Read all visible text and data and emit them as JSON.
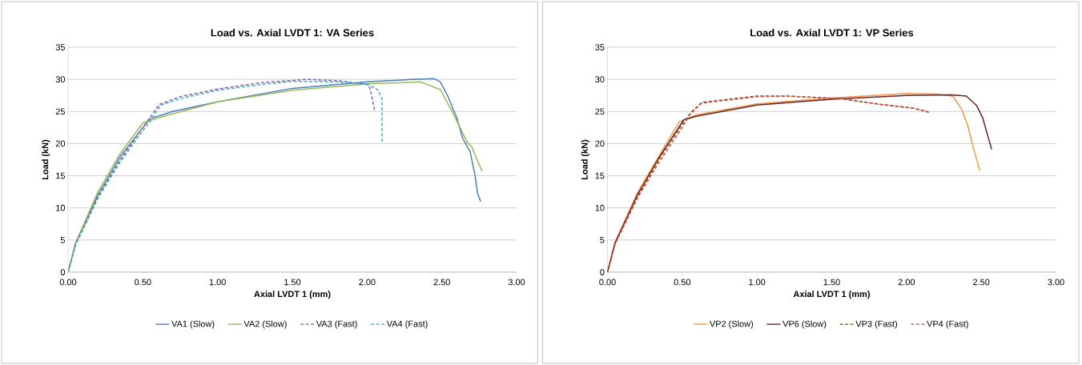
{
  "chart_data": [
    {
      "type": "line",
      "title": "Load vs. Axial LVDT 1: VA Series",
      "xlabel": "Axial LVDT 1 (mm)",
      "ylabel": "Load (kN)",
      "xlim": [
        0,
        3
      ],
      "xticks": [
        {
          "value": 0,
          "label": "0.00"
        },
        {
          "value": 0.5,
          "label": "0.50"
        },
        {
          "value": 1,
          "label": "1.00"
        },
        {
          "value": 1.5,
          "label": "1.50"
        },
        {
          "value": 2,
          "label": "2.00"
        },
        {
          "value": 2.5,
          "label": "2.50"
        },
        {
          "value": 3,
          "label": "3.00"
        }
      ],
      "ylim": [
        0,
        35
      ],
      "yticks": [
        0,
        5,
        10,
        15,
        20,
        25,
        30,
        35
      ],
      "grid": "y",
      "legend": "bottom",
      "series": [
        {
          "name": "VA1 (Slow)",
          "color": "#4a7ebb",
          "line_style": "solid",
          "x": [
            0,
            0.05,
            0.2,
            0.35,
            0.5,
            0.55,
            0.7,
            1.0,
            1.5,
            2.0,
            2.3,
            2.45,
            2.49,
            2.54,
            2.6,
            2.64,
            2.69,
            2.72,
            2.74,
            2.76
          ],
          "values": [
            0,
            4.5,
            12,
            18,
            22.5,
            23.9,
            25,
            26.5,
            28.6,
            29.6,
            30,
            30.1,
            29.6,
            27.4,
            24,
            20.8,
            18.7,
            15.3,
            12.2,
            11
          ]
        },
        {
          "name": "VA2 (Slow)",
          "color": "#98b954",
          "line_style": "solid",
          "x": [
            0,
            0.05,
            0.2,
            0.35,
            0.5,
            0.6,
            1.0,
            1.5,
            2.0,
            2.36,
            2.49,
            2.58,
            2.67,
            2.7,
            2.73,
            2.77
          ],
          "values": [
            0,
            4.5,
            12.5,
            18.5,
            23.2,
            24,
            26.5,
            28.3,
            29.3,
            29.6,
            28.4,
            24.5,
            20.2,
            19.5,
            17.8,
            15.7
          ]
        },
        {
          "name": "VA3 (Fast)",
          "color": "#7d60a0",
          "line_style": "dashed",
          "x": [
            0,
            0.05,
            0.2,
            0.35,
            0.5,
            0.61,
            0.75,
            1.0,
            1.3,
            1.6,
            1.8,
            2.0,
            2.02,
            2.05
          ],
          "values": [
            0,
            4.3,
            11.8,
            17.5,
            22.5,
            26.1,
            27.3,
            28.5,
            29.5,
            30,
            29.8,
            29.2,
            28.6,
            25.2
          ]
        },
        {
          "name": "VA4 (Fast)",
          "color": "#46aac5",
          "line_style": "dashed",
          "x": [
            0,
            0.05,
            0.2,
            0.35,
            0.5,
            0.55,
            0.62,
            0.75,
            1.0,
            1.3,
            1.5,
            1.8,
            2.0,
            2.07,
            2.1,
            2.1
          ],
          "values": [
            0,
            4.2,
            11.5,
            17.2,
            22,
            23.5,
            26,
            27,
            28.3,
            29.2,
            29.7,
            29.6,
            29.3,
            28.4,
            27,
            20
          ]
        }
      ]
    },
    {
      "type": "line",
      "title": "Load vs. Axial LVDT 1: VP Series",
      "xlabel": "Axial LVDT 1 (mm)",
      "ylabel": "Load (kN)",
      "xlim": [
        0,
        3
      ],
      "xticks": [
        {
          "value": 0,
          "label": "0.00"
        },
        {
          "value": 0.5,
          "label": "0.50"
        },
        {
          "value": 1,
          "label": "1.00"
        },
        {
          "value": 1.5,
          "label": "1.50"
        },
        {
          "value": 2,
          "label": "2.00"
        },
        {
          "value": 2.5,
          "label": "2.50"
        },
        {
          "value": 3,
          "label": "3.00"
        }
      ],
      "ylim": [
        0,
        35
      ],
      "yticks": [
        0,
        5,
        10,
        15,
        20,
        25,
        30,
        35
      ],
      "grid": "y",
      "legend": "bottom",
      "series": [
        {
          "name": "VP2 (Slow)",
          "color": "#f79646",
          "line_style": "solid",
          "x": [
            0,
            0.05,
            0.2,
            0.35,
            0.48,
            0.6,
            1.0,
            1.5,
            2.0,
            2.2,
            2.31,
            2.37,
            2.41,
            2.45,
            2.49
          ],
          "values": [
            0,
            4.6,
            12.3,
            18.3,
            23.4,
            24.5,
            26.2,
            27.1,
            27.8,
            27.7,
            27.4,
            25.3,
            22.8,
            19.1,
            15.8
          ]
        },
        {
          "name": "VP6 (Slow)",
          "color": "#632523",
          "line_style": "solid",
          "x": [
            0,
            0.05,
            0.2,
            0.35,
            0.51,
            0.6,
            1.0,
            1.5,
            2.0,
            2.3,
            2.4,
            2.47,
            2.51,
            2.54,
            2.57
          ],
          "values": [
            0,
            4.5,
            12,
            18,
            23.7,
            24.3,
            26,
            26.9,
            27.5,
            27.6,
            27.4,
            25.9,
            24,
            21.5,
            19.1
          ]
        },
        {
          "name": "VP3 (Fast)",
          "color": "#984807",
          "line_style": "dashed",
          "x": [
            0,
            0.05,
            0.2,
            0.35,
            0.5,
            0.56,
            0.63,
            1.0,
            1.2,
            1.56,
            1.83,
            2.05,
            2.16
          ],
          "values": [
            0,
            4.4,
            11.8,
            17.8,
            23,
            24.9,
            26.4,
            27.4,
            27.4,
            27,
            26.1,
            25.5,
            24.8
          ]
        },
        {
          "name": "VP4 (Fast)",
          "color": "#c0504d",
          "line_style": "dashed",
          "x": [
            0,
            0.05,
            0.2,
            0.35,
            0.5,
            0.55,
            0.63,
            1.0,
            1.2,
            1.56,
            1.83,
            2.05,
            2.14
          ],
          "values": [
            0,
            4.3,
            11.5,
            17.3,
            22.5,
            24.5,
            26.3,
            27.3,
            27.4,
            27,
            26.1,
            25.5,
            25
          ]
        }
      ]
    }
  ]
}
